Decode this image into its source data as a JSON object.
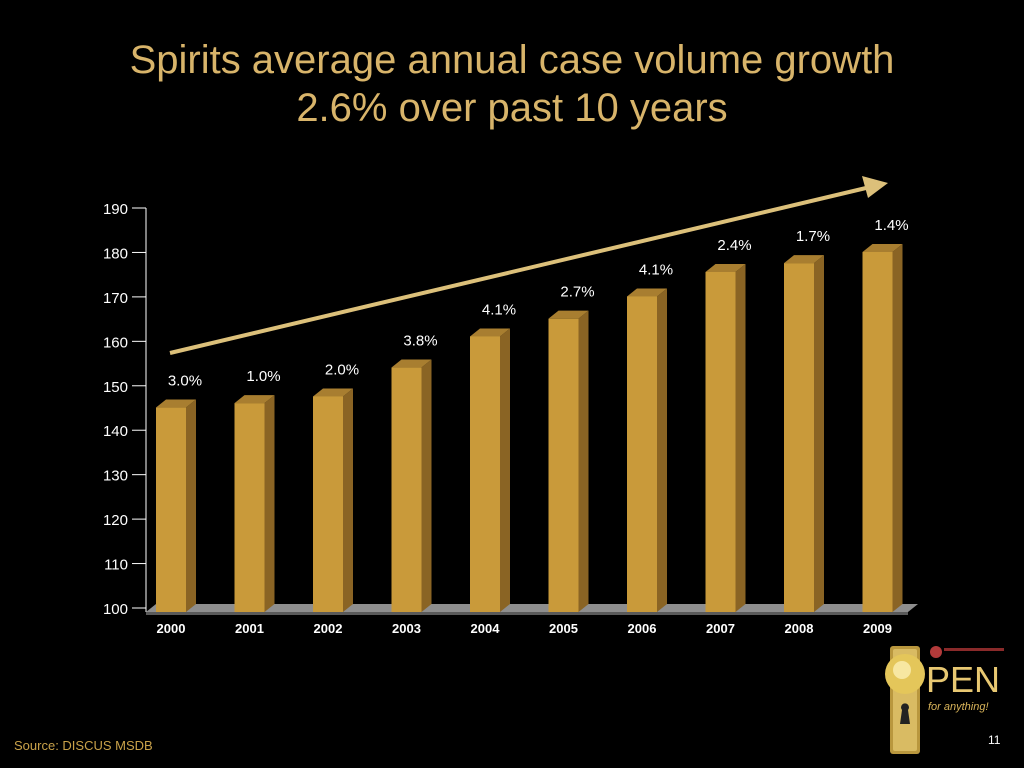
{
  "title_line1": "Spirits average annual case volume growth",
  "title_line2": "2.6% over past 10 years",
  "source": "Source:  DISCUS MSDB",
  "page_number": "11",
  "logo": {
    "word": "PEN",
    "tagline": "for anything!"
  },
  "colors": {
    "background": "#000000",
    "title": "#d8b46a",
    "bar_front": "#c99a3a",
    "bar_side": "#8a6424",
    "bar_top": "#a87e30",
    "arrow": "#dcc07a",
    "floor": "#8e8e8e",
    "text": "#ffffff"
  },
  "chart_data": {
    "type": "bar",
    "categories": [
      "2000",
      "2001",
      "2002",
      "2003",
      "2004",
      "2005",
      "2006",
      "2007",
      "2008",
      "2009"
    ],
    "values": [
      146,
      147,
      148.5,
      155,
      162,
      166,
      171,
      176.5,
      178.5,
      181
    ],
    "data_labels": [
      "3.0%",
      "1.0%",
      "2.0%",
      "3.8%",
      "4.1%",
      "2.7%",
      "4.1%",
      "2.4%",
      "1.7%",
      "1.4%"
    ],
    "ylim": [
      100,
      190
    ],
    "yticks": [
      100,
      110,
      120,
      130,
      140,
      150,
      160,
      170,
      180,
      190
    ],
    "grid": false,
    "annotation": "trend arrow"
  }
}
